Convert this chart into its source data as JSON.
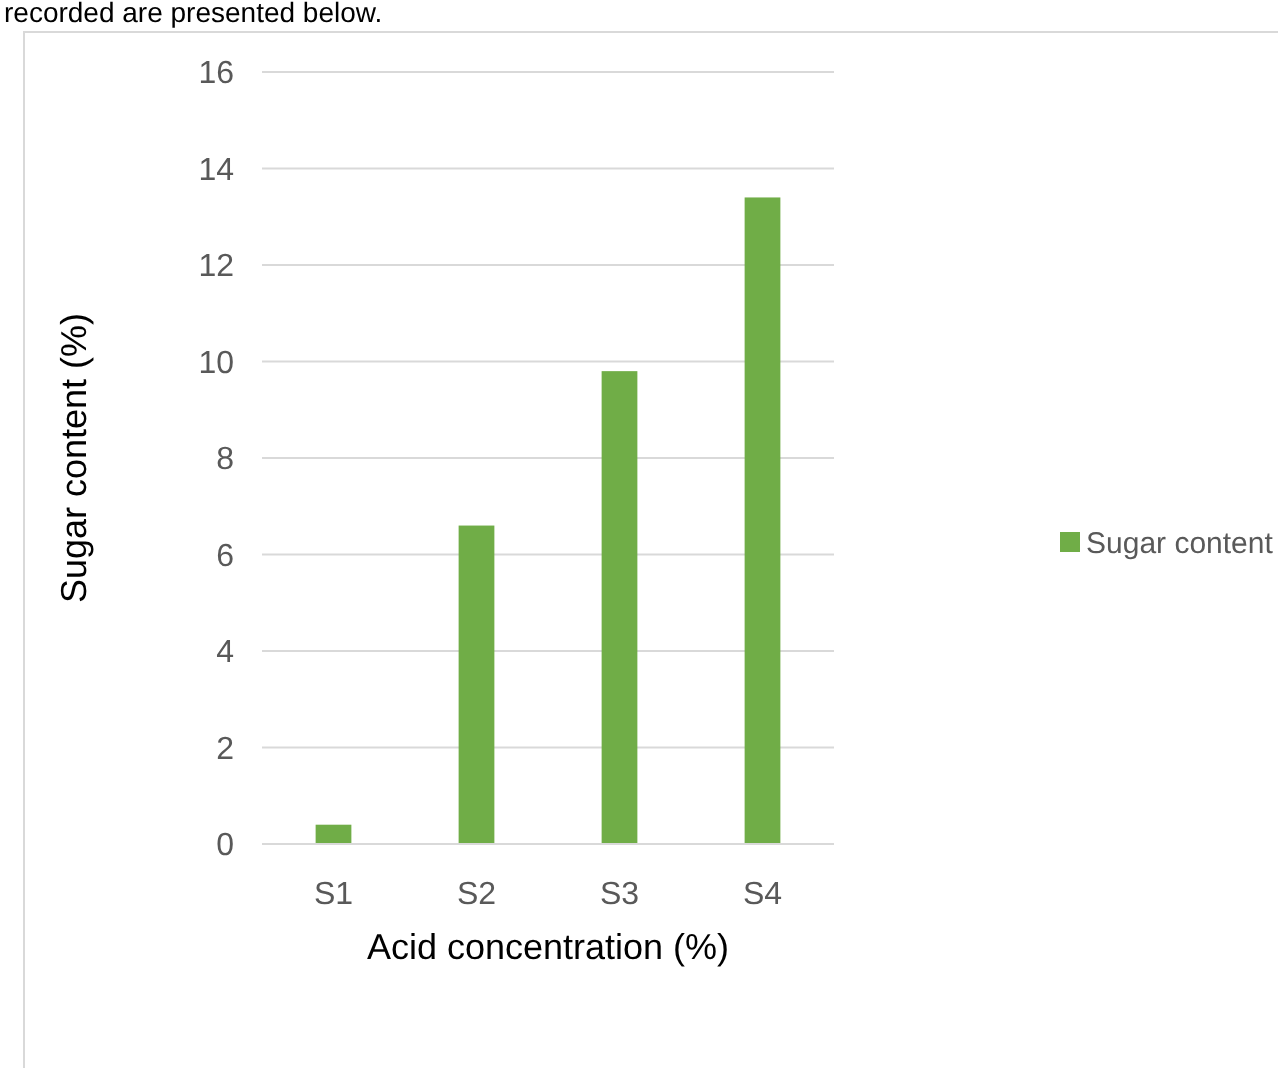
{
  "chart_data": {
    "type": "bar",
    "xlabel": "Acid concentration (%)",
    "ylabel": "Sugar content (%)",
    "annotations": [
      "recorded are presented below."
    ],
    "categories": [
      "S1",
      "S2",
      "S3",
      "S4"
    ],
    "series": [
      {
        "name": "Sugar content",
        "color": "#70ad47",
        "values": [
          0.4,
          6.6,
          9.8,
          13.4
        ]
      }
    ],
    "ylim": [
      0,
      16
    ],
    "yticks": [
      0,
      2,
      4,
      6,
      8,
      10,
      12,
      14,
      16
    ],
    "grid": "y",
    "legend": "right"
  }
}
